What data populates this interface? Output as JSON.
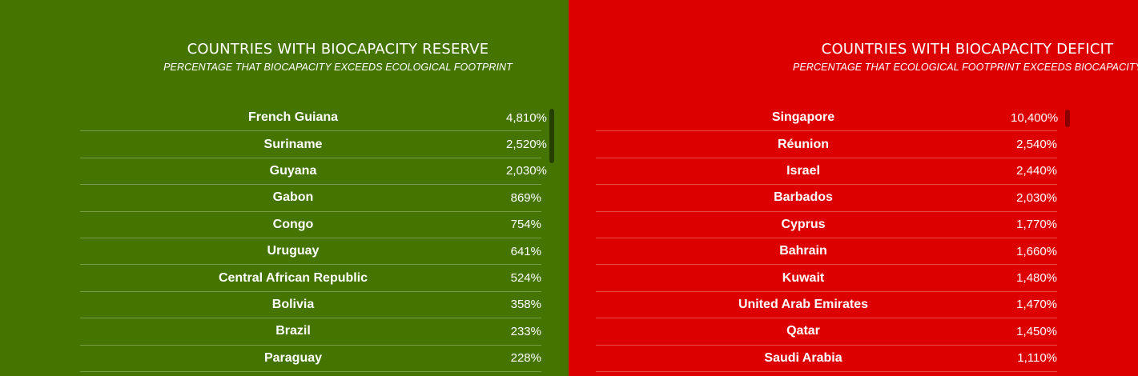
{
  "reserve": {
    "title": "COUNTRIES WITH BIOCAPACITY RESERVE",
    "subtitle": "PERCENTAGE THAT BIOCAPACITY EXCEEDS ECOLOGICAL FOOTPRINT",
    "color": "#457500",
    "rows": [
      {
        "name": "French Guiana",
        "value": "4,810%"
      },
      {
        "name": "Suriname",
        "value": "2,520%"
      },
      {
        "name": "Guyana",
        "value": "2,030%"
      },
      {
        "name": "Gabon",
        "value": "869%"
      },
      {
        "name": "Congo",
        "value": "754%"
      },
      {
        "name": "Uruguay",
        "value": "641%"
      },
      {
        "name": "Central African Republic",
        "value": "524%"
      },
      {
        "name": "Bolivia",
        "value": "358%"
      },
      {
        "name": "Brazil",
        "value": "233%"
      },
      {
        "name": "Paraguay",
        "value": "228%"
      }
    ]
  },
  "deficit": {
    "title": "COUNTRIES WITH BIOCAPACITY DEFICIT",
    "subtitle": "PERCENTAGE THAT ECOLOGICAL FOOTPRINT EXCEEDS BIOCAPACITY",
    "color": "#dd0000",
    "rows": [
      {
        "name": "Singapore",
        "value": "10,400%"
      },
      {
        "name": "Réunion",
        "value": "2,540%"
      },
      {
        "name": "Israel",
        "value": "2,440%"
      },
      {
        "name": "Barbados",
        "value": "2,030%"
      },
      {
        "name": "Cyprus",
        "value": "1,770%"
      },
      {
        "name": "Bahrain",
        "value": "1,660%"
      },
      {
        "name": "Kuwait",
        "value": "1,480%"
      },
      {
        "name": "United Arab Emirates",
        "value": "1,470%"
      },
      {
        "name": "Qatar",
        "value": "1,450%"
      },
      {
        "name": "Saudi Arabia",
        "value": "1,110%"
      }
    ]
  }
}
